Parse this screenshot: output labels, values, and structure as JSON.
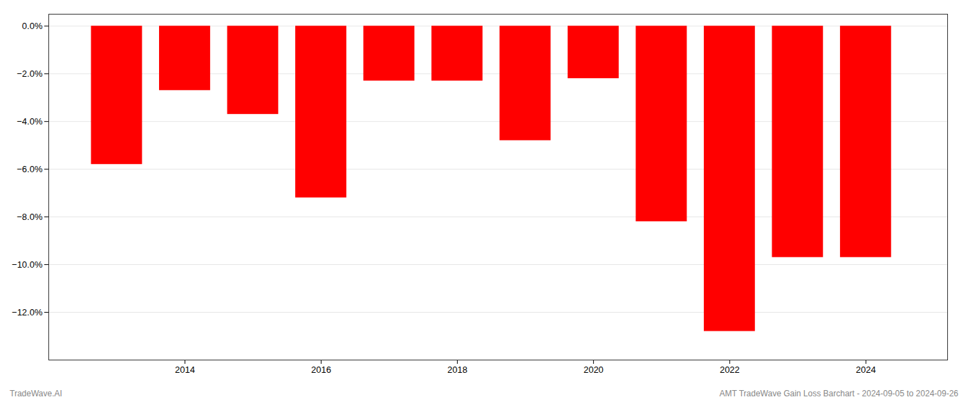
{
  "chart_data": {
    "type": "bar",
    "x": [
      2013,
      2014,
      2015,
      2016,
      2017,
      2018,
      2019,
      2020,
      2021,
      2022,
      2023,
      2024
    ],
    "values": [
      -5.8,
      -2.7,
      -3.7,
      -7.2,
      -2.3,
      -2.3,
      -4.8,
      -2.2,
      -8.2,
      -12.8,
      -9.7,
      -9.7
    ],
    "color": "#ff0000",
    "xlim": [
      2012.0,
      2025.2
    ],
    "xticks": [
      2014,
      2016,
      2018,
      2020,
      2022,
      2024
    ],
    "ylim": [
      -14,
      0.5
    ],
    "yticks": [
      {
        "value": 0,
        "label": "0.0%"
      },
      {
        "value": -2,
        "label": "−2.0%"
      },
      {
        "value": -4,
        "label": "−4.0%"
      },
      {
        "value": -6,
        "label": "−6.0%"
      },
      {
        "value": -8,
        "label": "−8.0%"
      },
      {
        "value": -10,
        "label": "−10.0%"
      },
      {
        "value": -12,
        "label": "−12.0%"
      }
    ],
    "grid": true,
    "annotations": [
      "TradeWave.AI",
      "AMT TradeWave Gain Loss Barchart - 2024-09-05 to 2024-09-26"
    ]
  }
}
